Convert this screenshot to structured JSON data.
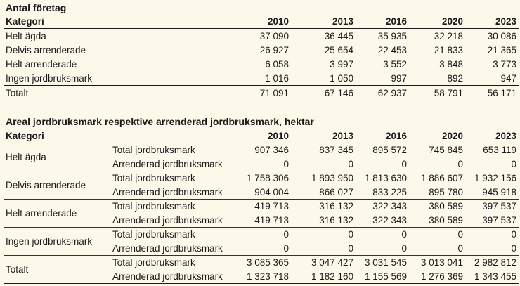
{
  "table1": {
    "title": "Antal företag",
    "headers": [
      "Kategori",
      "2010",
      "2013",
      "2016",
      "2020",
      "2023"
    ],
    "rows": [
      {
        "label": "Helt ägda",
        "values": [
          "37 090",
          "36 445",
          "35 935",
          "32 218",
          "30 086"
        ]
      },
      {
        "label": "Delvis arrenderade",
        "values": [
          "26 927",
          "25 654",
          "22 453",
          "21 833",
          "21 365"
        ]
      },
      {
        "label": "Helt arrenderade",
        "values": [
          "6 058",
          "3 997",
          "3 552",
          "3 848",
          "3 773"
        ]
      },
      {
        "label": "Ingen jordbruksmark",
        "values": [
          "1 016",
          "1 050",
          "997",
          "892",
          "947"
        ]
      }
    ],
    "total": {
      "label": "Totalt",
      "values": [
        "71 091",
        "67 146",
        "62 937",
        "58 791",
        "56 171"
      ]
    }
  },
  "table2": {
    "title": "Areal jordbruksmark respektive arrenderad jordbruksmark, hektar",
    "headers": [
      "Kategori",
      "",
      "2010",
      "2013",
      "2016",
      "2020",
      "2023"
    ],
    "groups": [
      {
        "label": "Helt ägda",
        "rows": [
          {
            "sub": "Total jordbruksmark",
            "values": [
              "907 346",
              "837 345",
              "895 572",
              "745 845",
              "653 119"
            ]
          },
          {
            "sub": "Arrenderad jordbruksmark",
            "values": [
              "0",
              "0",
              "0",
              "0",
              "0"
            ]
          }
        ]
      },
      {
        "label": "Delvis arrenderade",
        "rows": [
          {
            "sub": "Total jordbruksmark",
            "values": [
              "1 758 306",
              "1 893 950",
              "1 813 630",
              "1 886 607",
              "1 932 156"
            ]
          },
          {
            "sub": "Arrenderad jordbruksmark",
            "values": [
              "904 004",
              "866 027",
              "833 225",
              "895 780",
              "945 918"
            ]
          }
        ]
      },
      {
        "label": "Helt arrenderade",
        "rows": [
          {
            "sub": "Total jordbruksmark",
            "values": [
              "419 713",
              "316 132",
              "322 343",
              "380 589",
              "397 537"
            ]
          },
          {
            "sub": "Arrenderad jordbruksmark",
            "values": [
              "419 713",
              "316 132",
              "322 343",
              "380 589",
              "397 537"
            ]
          }
        ]
      },
      {
        "label": "Ingen jordbruksmark",
        "rows": [
          {
            "sub": "Total jordbruksmark",
            "values": [
              "0",
              "0",
              "0",
              "0",
              "0"
            ]
          },
          {
            "sub": "Arrenderad jordbruksmark",
            "values": [
              "0",
              "0",
              "0",
              "0",
              "0"
            ]
          }
        ]
      },
      {
        "label": "Totalt",
        "rows": [
          {
            "sub": "Total jordbruksmark",
            "values": [
              "3 085 365",
              "3 047 427",
              "3 031 545",
              "3 013 041",
              "2 982 812"
            ]
          },
          {
            "sub": "Arrenderad jordbruksmark",
            "values": [
              "1 323 718",
              "1 182 160",
              "1 155 569",
              "1 276 369",
              "1 343 455"
            ]
          }
        ]
      }
    ]
  }
}
